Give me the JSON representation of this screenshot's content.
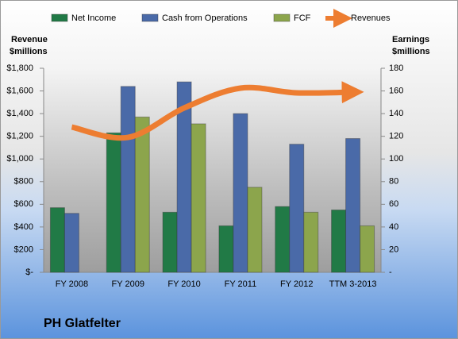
{
  "chart_data": {
    "type": "bar",
    "title": "PH Glatfelter",
    "categories": [
      "FY 2008",
      "FY 2009",
      "FY 2010",
      "FY 2011",
      "FY 2012",
      "TTM 3-2013"
    ],
    "ylabel": [
      "Revenue",
      "$millions"
    ],
    "y2label": [
      "Earnings",
      "$millions"
    ],
    "ylim": [
      0,
      1800
    ],
    "yticks": [
      {
        "value": 0,
        "label": "$-"
      },
      {
        "value": 200,
        "label": "$200"
      },
      {
        "value": 400,
        "label": "$400"
      },
      {
        "value": 600,
        "label": "$600"
      },
      {
        "value": 800,
        "label": "$800"
      },
      {
        "value": 1000,
        "label": "$1,000"
      },
      {
        "value": 1200,
        "label": "$1,200"
      },
      {
        "value": 1400,
        "label": "$1,400"
      },
      {
        "value": 1600,
        "label": "$1,600"
      },
      {
        "value": 1800,
        "label": "$1,800"
      }
    ],
    "y2lim": [
      0,
      180
    ],
    "y2ticks": [
      {
        "value": 0,
        "label": "-"
      },
      20,
      40,
      60,
      80,
      100,
      120,
      140,
      160,
      180
    ],
    "grid": false,
    "series": [
      {
        "name": "Net Income",
        "type": "bar",
        "axis": "y2",
        "color": "#217a46",
        "values": [
          57,
          123,
          53,
          41,
          58,
          55
        ]
      },
      {
        "name": "Cash from Operations",
        "type": "bar",
        "axis": "y2",
        "color": "#4a6aa8",
        "values": [
          52,
          164,
          168,
          140,
          113,
          118
        ]
      },
      {
        "name": "FCF",
        "type": "bar",
        "axis": "y2",
        "color": "#8ca54c",
        "values": [
          null,
          137,
          131,
          75,
          53,
          41
        ]
      },
      {
        "name": "Revenues",
        "type": "line",
        "axis": "y",
        "color": "#ed7d31",
        "values": [
          1281,
          1190,
          1450,
          1625,
          1583,
          1590
        ]
      }
    ]
  }
}
